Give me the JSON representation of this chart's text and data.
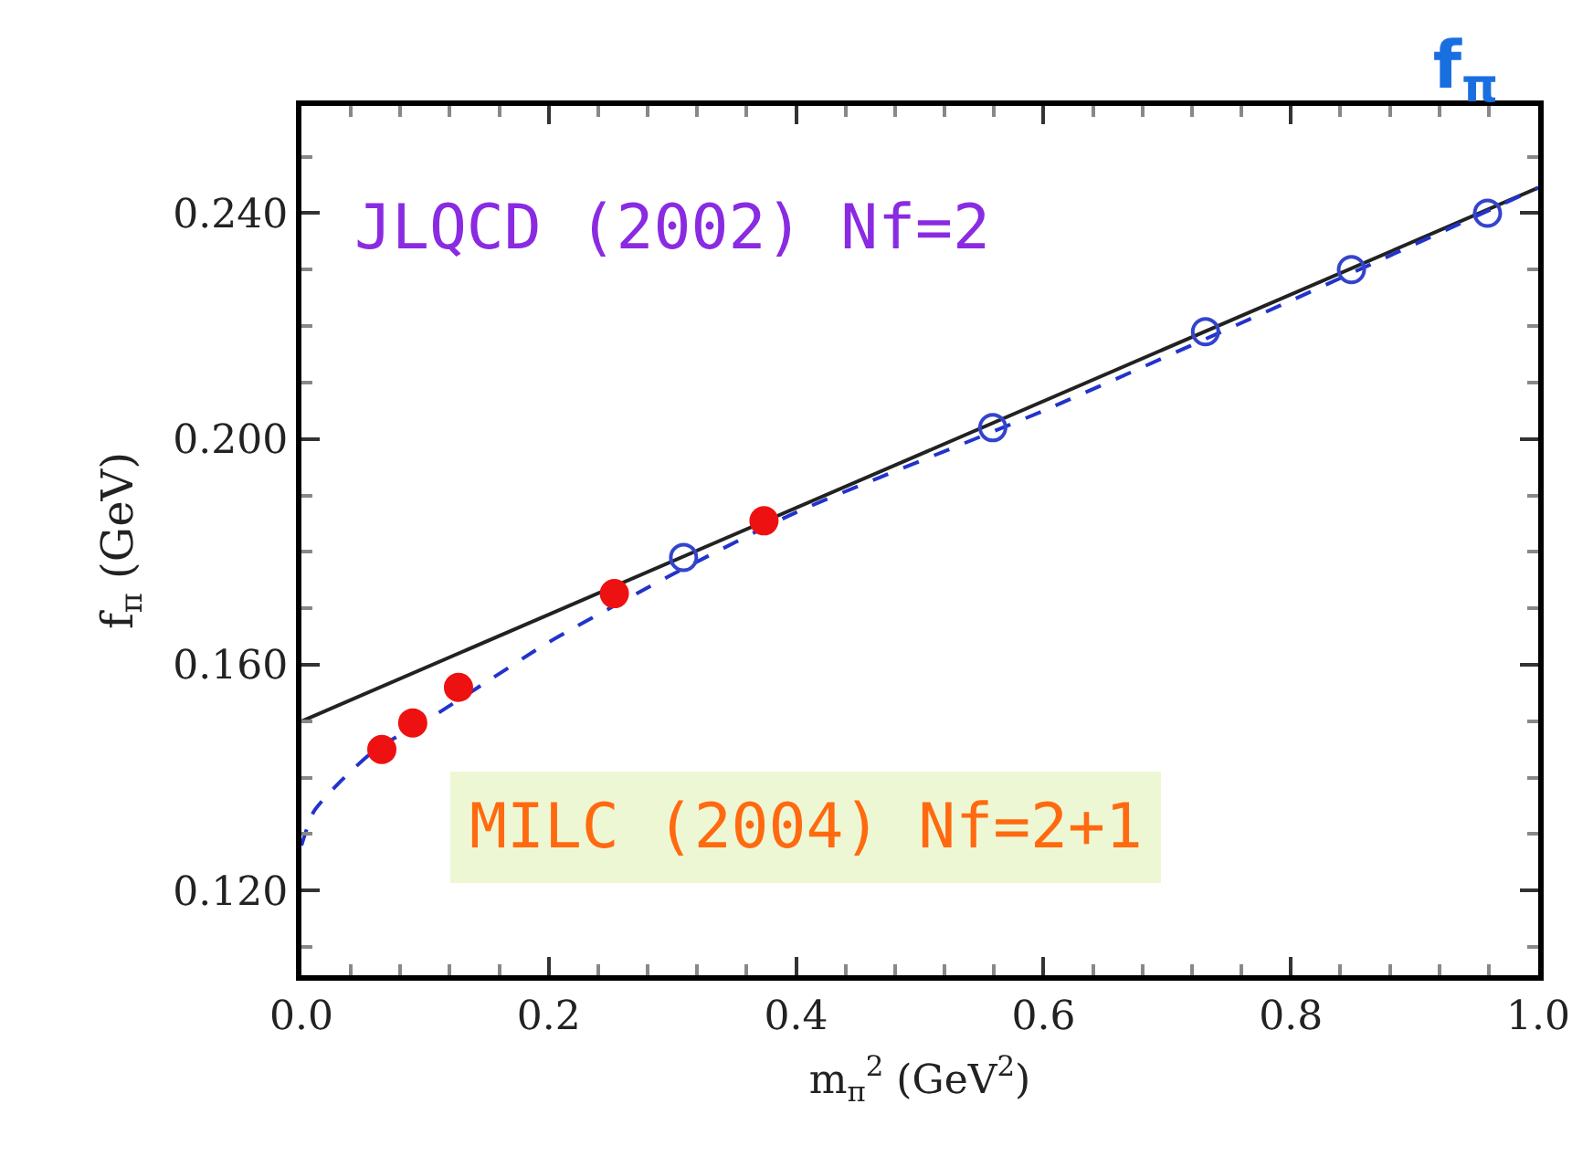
{
  "chart_data": {
    "type": "scatter",
    "title": "f$_{π}$",
    "xlabel": "m$_{π}$$^{2}$ (GeV$^{2}$)",
    "ylabel": "f$_{π}$ (GeV)",
    "annotations": [
      "JLQCD (2002) Nf=2",
      "MILC (2004) Nf=2+1"
    ],
    "xlim": [
      0.0,
      1.0
    ],
    "xticks": [
      {
        "value": 0.0,
        "label": "0.0"
      },
      0.2,
      0.4,
      0.6,
      0.8,
      {
        "value": 1.0,
        "label": "1.0"
      }
    ],
    "ylim": [
      0.105,
      0.259
    ],
    "yticks": [
      {
        "value": 0.12,
        "label": "0.120"
      },
      {
        "value": 0.16,
        "label": "0.160"
      },
      {
        "value": 0.2,
        "label": "0.200"
      },
      {
        "value": 0.24,
        "label": "0.240"
      }
    ],
    "series": [
      {
        "type": "line",
        "color": "#222222",
        "line_style": "solid",
        "marker": "none",
        "x": [
          0.0,
          1.0
        ],
        "values": [
          0.15,
          0.2445
        ]
      },
      {
        "type": "line",
        "color": "#2233cc",
        "line_style": "dashed",
        "marker": "none",
        "x": [
          0.0,
          0.01,
          0.03,
          0.06,
          0.1,
          0.15,
          0.2,
          0.3,
          0.4,
          0.6,
          0.8,
          1.0
        ],
        "values": [
          0.128,
          0.134,
          0.139,
          0.145,
          0.15,
          0.157,
          0.164,
          0.176,
          0.187,
          0.205,
          0.2245,
          0.2445
        ]
      },
      {
        "color": "#3344cc",
        "marker": "circle-open",
        "x": [
          0.309,
          0.559,
          0.731,
          0.849,
          0.959
        ],
        "values": [
          0.179,
          0.202,
          0.219,
          0.23,
          0.24
        ]
      },
      {
        "color": "#ee1111",
        "marker": "circle",
        "x": [
          0.065,
          0.09,
          0.127,
          0.253,
          0.374
        ],
        "values": [
          0.145,
          0.1497,
          0.156,
          0.1726,
          0.1855
        ]
      }
    ]
  }
}
